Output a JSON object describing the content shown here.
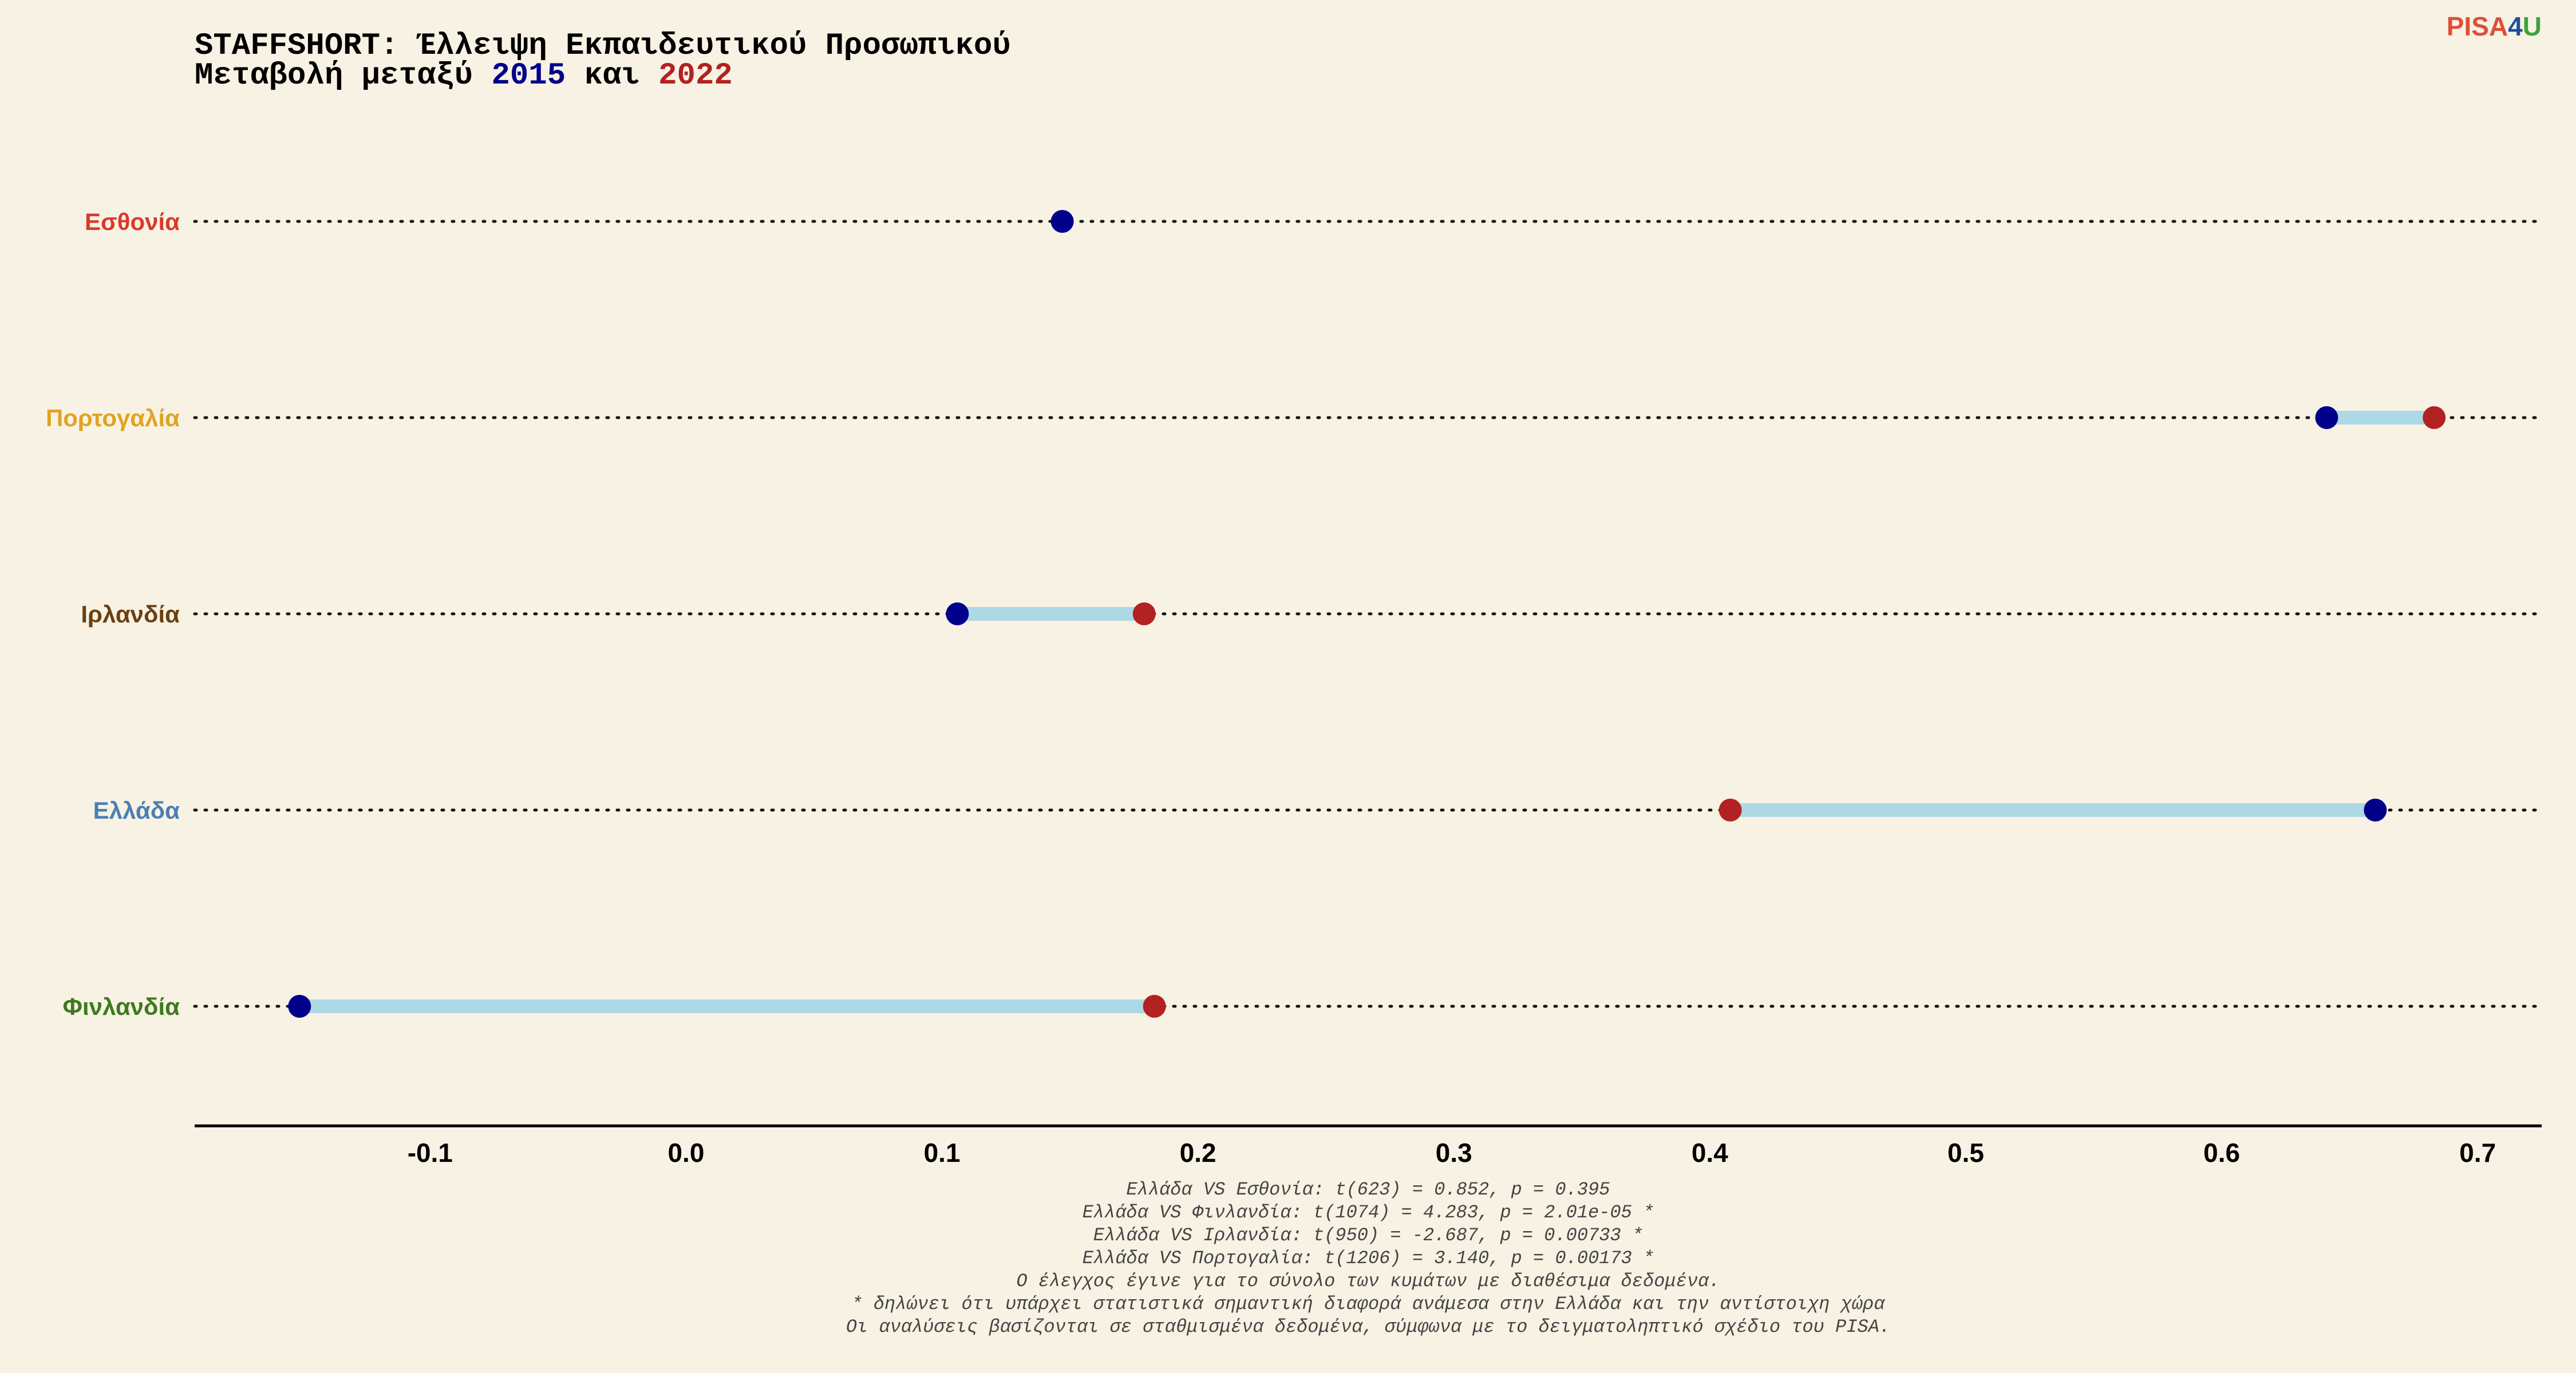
{
  "header": {
    "title_line1": "STAFFSHORT: Έλλειψη Εκπαιδευτικού Προσωπικού",
    "title_line2_prefix": "Μεταβολή μεταξύ ",
    "title_line2_year1": "2015",
    "title_line2_middle": " και ",
    "title_line2_year2": "2022"
  },
  "logo": {
    "part1": "PISA",
    "part2": "4",
    "part3": "U"
  },
  "colors": {
    "year_2015": "#00008b",
    "year_2022": "#b22222",
    "segment": "#add8e6",
    "background": "#f8f2e4"
  },
  "chart_data": {
    "type": "dumbbell",
    "x_ticks": [
      "-0.1",
      "0.0",
      "0.1",
      "0.2",
      "0.3",
      "0.4",
      "0.5",
      "0.6",
      "0.7"
    ],
    "xlim": [
      -0.192,
      0.725
    ],
    "grid": "dotted horizontal per category",
    "series_labels": [
      "2015",
      "2022"
    ],
    "categories": [
      {
        "name": "Εσθονία",
        "color": "#d93a2b",
        "v2015": 0.147,
        "v2022": null
      },
      {
        "name": "Πορτογαλία",
        "color": "#e0a421",
        "v2015": 0.641,
        "v2022": 0.683
      },
      {
        "name": "Ιρλανδία",
        "color": "#6b4012",
        "v2015": 0.106,
        "v2022": 0.179
      },
      {
        "name": "Ελλάδα",
        "color": "#4a7fb3",
        "v2015": 0.66,
        "v2022": 0.408
      },
      {
        "name": "Φινλανδία",
        "color": "#3d7a1e",
        "v2015": -0.151,
        "v2022": 0.183
      }
    ],
    "notes": [
      "Ελλάδα VS Εσθονία: t(623) = 0.852, p = 0.395",
      "Ελλάδα VS Φινλανδία: t(1074) = 4.283, p = 2.01e-05 *",
      "Ελλάδα VS Ιρλανδία: t(950) = -2.687, p = 0.00733 *",
      "Ελλάδα VS Πορτογαλία: t(1206) = 3.140, p = 0.00173 *",
      "Ο έλεγχος έγινε για το σύνολο των κυμάτων με διαθέσιμα δεδομένα.",
      "* δηλώνει ότι υπάρχει στατιστικά σημαντική διαφορά ανάμεσα στην Ελλάδα και την αντίστοιχη χώρα",
      "Οι αναλύσεις βασίζονται σε σταθμισμένα δεδομένα, σύμφωνα με το δειγματοληπτικό σχέδιο του PISA."
    ]
  }
}
